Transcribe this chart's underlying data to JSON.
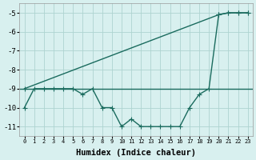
{
  "xlabel": "Humidex (Indice chaleur)",
  "bg_color": "#d8f0ef",
  "grid_color": "#aed4d0",
  "line_color": "#1a6b5e",
  "xlim": [
    -0.5,
    23.5
  ],
  "ylim": [
    -11.5,
    -4.5
  ],
  "yticks": [
    -11,
    -10,
    -9,
    -8,
    -7,
    -6,
    -5
  ],
  "xticks": [
    0,
    1,
    2,
    3,
    4,
    5,
    6,
    7,
    8,
    9,
    10,
    11,
    12,
    13,
    14,
    15,
    16,
    17,
    18,
    19,
    20,
    21,
    22,
    23
  ],
  "line1_x": [
    0,
    1,
    2,
    3,
    4,
    5,
    6,
    7,
    8,
    9,
    10,
    11,
    12,
    13,
    14,
    15,
    16,
    17,
    18,
    19,
    20,
    21,
    22,
    23
  ],
  "line1_y": [
    -10.0,
    -9.0,
    -9.0,
    -9.0,
    -9.0,
    -9.0,
    -9.3,
    -9.0,
    -10.0,
    -10.0,
    -11.0,
    -10.6,
    -11.0,
    -11.0,
    -11.0,
    -11.0,
    -11.0,
    -10.0,
    -9.3,
    -9.0,
    -5.1,
    -5.0,
    -5.0,
    -5.0
  ],
  "line2_x": [
    0,
    20,
    21,
    22,
    23
  ],
  "line2_y": [
    -9.0,
    -5.1,
    -5.0,
    -5.0,
    -5.0
  ],
  "hline_y": -9.0,
  "marker": "+",
  "markersize": 4,
  "linewidth": 1.0
}
